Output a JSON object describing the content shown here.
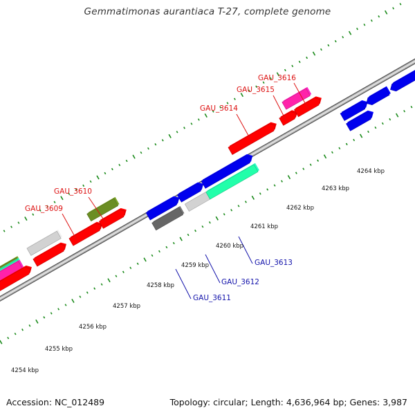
{
  "title": "Gemmatimonas aurantiaca T-27, complete genome",
  "footer": {
    "accession": "Accession: NC_012489",
    "summary": "Topology: circular; Length: 4,636,964 bp; Genes: 3,987"
  },
  "colors": {
    "backbone": "#8c8c8c",
    "tick": "#1a8a1a",
    "label_top": "#dd1111",
    "label_bottom": "#1111aa",
    "red": "#ff0000",
    "blue": "#0000ee",
    "grey": "#d2d2d2",
    "dark_grey": "#666666",
    "olive": "#6b8e23",
    "magenta": "#ff22aa",
    "aquamarine": "#22ffaa"
  },
  "kbp_ticks": [
    {
      "kbp": 4254,
      "label": "4254 kbp"
    },
    {
      "kbp": 4255,
      "label": "4255 kbp"
    },
    {
      "kbp": 4256,
      "label": "4256 kbp"
    },
    {
      "kbp": 4257,
      "label": "4257 kbp"
    },
    {
      "kbp": 4258,
      "label": "4258 kbp"
    },
    {
      "kbp": 4259,
      "label": "4259 kbp"
    },
    {
      "kbp": 4260,
      "label": "4260 kbp"
    },
    {
      "kbp": 4261,
      "label": "4261 kbp"
    },
    {
      "kbp": 4262,
      "label": "4262 kbp"
    },
    {
      "kbp": 4263,
      "label": "4263 kbp"
    },
    {
      "kbp": 4264,
      "label": "4264 kbp"
    }
  ],
  "gene_labels": [
    {
      "text": "GAU_3609",
      "strand": "top"
    },
    {
      "text": "GAU_3610",
      "strand": "top"
    },
    {
      "text": "GAU_3614",
      "strand": "top"
    },
    {
      "text": "GAU_3615",
      "strand": "top"
    },
    {
      "text": "GAU_3616",
      "strand": "top"
    },
    {
      "text": "GAU_3611",
      "strand": "bottom"
    },
    {
      "text": "GAU_3612",
      "strand": "bottom"
    },
    {
      "text": "GAU_3613",
      "strand": "bottom"
    }
  ]
}
